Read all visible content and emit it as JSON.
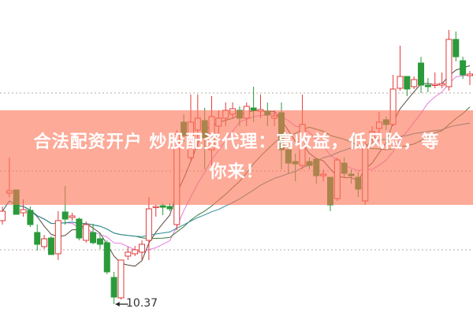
{
  "banner": {
    "line1": "合法配资开户 炒股配资代理：高收益，低风险，等",
    "line2": "你来！"
  },
  "chart_data": {
    "type": "candlestick",
    "title": "",
    "annotations": [
      {
        "text": "10.37",
        "target": "low",
        "value": 10.37
      }
    ],
    "grid": "dotted horizontal",
    "colors": {
      "up": "#e03a3a",
      "down": "#2a9a3a",
      "ma5": "#5a4a40",
      "ma10": "#e47ae0",
      "ma20": "#3d7a3d",
      "ma30": "#2a8c96"
    },
    "moving_averages": [
      5,
      10,
      20,
      30
    ],
    "candles": [
      [
        11.43,
        11.55,
        11.61,
        11.38
      ],
      [
        11.78,
        11.81,
        12.23,
        11.73
      ],
      [
        11.82,
        11.51,
        11.82,
        11.51
      ],
      [
        11.53,
        11.57,
        11.7,
        11.48
      ],
      [
        11.56,
        11.38,
        11.61,
        11.35
      ],
      [
        11.28,
        11.13,
        11.38,
        11.05
      ],
      [
        11.1,
        11.2,
        11.25,
        11.07
      ],
      [
        11.21,
        11.0,
        11.23,
        11.0
      ],
      [
        11.01,
        11.43,
        11.55,
        10.93
      ],
      [
        11.54,
        11.45,
        11.87,
        11.38
      ],
      [
        11.47,
        11.49,
        11.53,
        11.43
      ],
      [
        11.45,
        11.21,
        11.47,
        11.18
      ],
      [
        11.18,
        11.38,
        11.42,
        11.15
      ],
      [
        11.28,
        11.15,
        11.39,
        11.13
      ],
      [
        11.2,
        11.13,
        11.28,
        11.07
      ],
      [
        11.15,
        10.78,
        11.18,
        10.75
      ],
      [
        10.71,
        10.46,
        10.78,
        10.37
      ],
      [
        10.45,
        10.93,
        10.93,
        10.43
      ],
      [
        10.98,
        11.03,
        11.1,
        10.93
      ],
      [
        11.01,
        11.06,
        11.11,
        10.98
      ],
      [
        11.03,
        11.13,
        11.18,
        10.93
      ],
      [
        11.18,
        11.58,
        11.73,
        10.93
      ],
      [
        11.6,
        11.61,
        11.63,
        11.48
      ],
      [
        11.62,
        11.6,
        11.65,
        11.5
      ],
      [
        11.61,
        11.58,
        11.65,
        11.55
      ],
      [
        11.38,
        12.53,
        12.58,
        11.31
      ],
      [
        12.68,
        12.51,
        12.78,
        12.43
      ],
      [
        12.23,
        12.68,
        13.03,
        12.18
      ],
      [
        12.58,
        12.73,
        13.03,
        12.33
      ],
      [
        12.7,
        12.48,
        12.86,
        12.08
      ],
      [
        12.33,
        12.75,
        13.01,
        12.13
      ],
      [
        12.63,
        12.73,
        12.83,
        12.53
      ],
      [
        12.73,
        12.83,
        12.93,
        12.63
      ],
      [
        12.78,
        12.85,
        12.93,
        12.73
      ],
      [
        12.83,
        12.73,
        12.88,
        12.63
      ],
      [
        12.73,
        12.88,
        12.93,
        12.63
      ],
      [
        12.86,
        12.83,
        13.13,
        12.68
      ],
      [
        12.82,
        12.84,
        13.03,
        12.73
      ],
      [
        12.82,
        12.77,
        12.93,
        12.63
      ],
      [
        12.73,
        12.76,
        12.83,
        12.63
      ],
      [
        12.8,
        12.33,
        12.93,
        12.08
      ],
      [
        12.33,
        12.16,
        12.48,
        12.03
      ],
      [
        12.18,
        12.15,
        12.28,
        11.93
      ],
      [
        12.13,
        12.65,
        13.03,
        12.08
      ],
      [
        12.18,
        12.13,
        12.23,
        12.08
      ],
      [
        12.21,
        12.0,
        12.23,
        11.9
      ],
      [
        12.0,
        12.02,
        12.08,
        11.93
      ],
      [
        11.98,
        11.63,
        11.98,
        11.55
      ],
      [
        11.71,
        12.2,
        12.23,
        11.68
      ],
      [
        12.16,
        12.03,
        12.23,
        11.98
      ],
      [
        12.02,
        12.0,
        12.08,
        11.9
      ],
      [
        11.98,
        11.83,
        12.05,
        11.73
      ],
      [
        11.68,
        12.38,
        12.43,
        11.63
      ],
      [
        12.46,
        12.56,
        12.63,
        12.43
      ],
      [
        12.6,
        12.68,
        12.81,
        12.53
      ],
      [
        12.71,
        12.65,
        12.75,
        12.58
      ],
      [
        12.65,
        13.1,
        13.28,
        12.63
      ],
      [
        13.11,
        13.26,
        13.65,
        13.08
      ],
      [
        13.26,
        13.1,
        13.26,
        13.01
      ],
      [
        13.13,
        13.22,
        13.26,
        13.1
      ],
      [
        13.43,
        13.15,
        13.51,
        13.05
      ],
      [
        13.15,
        13.13,
        13.24,
        13.06
      ],
      [
        13.15,
        13.16,
        13.31,
        13.11
      ],
      [
        13.15,
        13.17,
        13.31,
        13.11
      ],
      [
        13.13,
        13.73,
        13.85,
        13.08
      ],
      [
        13.73,
        13.51,
        13.83,
        13.45
      ],
      [
        13.46,
        13.28,
        13.51,
        13.23
      ],
      [
        13.27,
        13.29,
        13.33,
        13.15
      ]
    ],
    "candle_fields": [
      "open",
      "close",
      "high",
      "low"
    ],
    "gridline_values": [
      13.05,
      12.06,
      11.06
    ]
  }
}
